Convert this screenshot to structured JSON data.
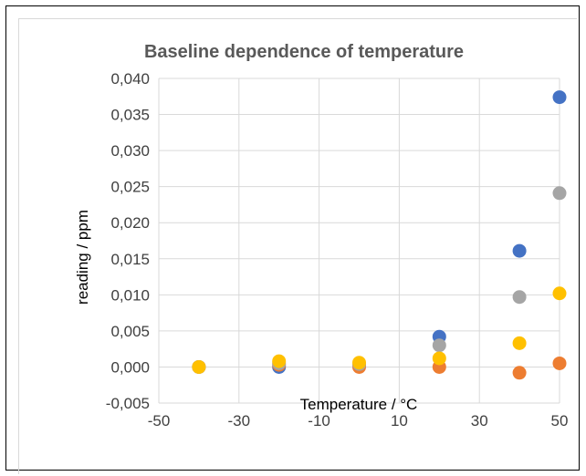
{
  "chart_data": {
    "type": "scatter",
    "title": "Baseline dependence of temperature",
    "xlabel": "Temperature / °C",
    "ylabel": "reading / ppm",
    "xlim": [
      -50,
      50
    ],
    "ylim": [
      -0.005,
      0.04
    ],
    "x_ticks": [
      "-50",
      "-30",
      "-10",
      "10",
      "30",
      "50"
    ],
    "y_ticks": [
      "-0,005",
      "0,000",
      "0,005",
      "0,010",
      "0,015",
      "0,020",
      "0,025",
      "0,030",
      "0,035",
      "0,040"
    ],
    "grid": true,
    "legend": "none",
    "series": [
      {
        "color": "#4472c4",
        "points": [
          [
            -40,
            0.0
          ],
          [
            -20,
            0.0
          ],
          [
            0,
            0.0003
          ],
          [
            20,
            0.0042
          ],
          [
            40,
            0.0161
          ],
          [
            50,
            0.0374
          ]
        ]
      },
      {
        "color": "#ed7d31",
        "points": [
          [
            -40,
            0.0
          ],
          [
            -20,
            0.0003
          ],
          [
            0,
            0.0
          ],
          [
            20,
            0.0
          ],
          [
            40,
            -0.0008
          ],
          [
            50,
            0.0005
          ]
        ]
      },
      {
        "color": "#a5a5a5",
        "points": [
          [
            -40,
            0.0
          ],
          [
            -20,
            0.0005
          ],
          [
            0,
            0.0004
          ],
          [
            20,
            0.003
          ],
          [
            40,
            0.0097
          ],
          [
            50,
            0.0241
          ]
        ]
      },
      {
        "color": "#ffc000",
        "points": [
          [
            -40,
            0.0
          ],
          [
            -20,
            0.0008
          ],
          [
            0,
            0.0006
          ],
          [
            20,
            0.0012
          ],
          [
            40,
            0.0033
          ],
          [
            50,
            0.0102
          ]
        ]
      }
    ]
  }
}
